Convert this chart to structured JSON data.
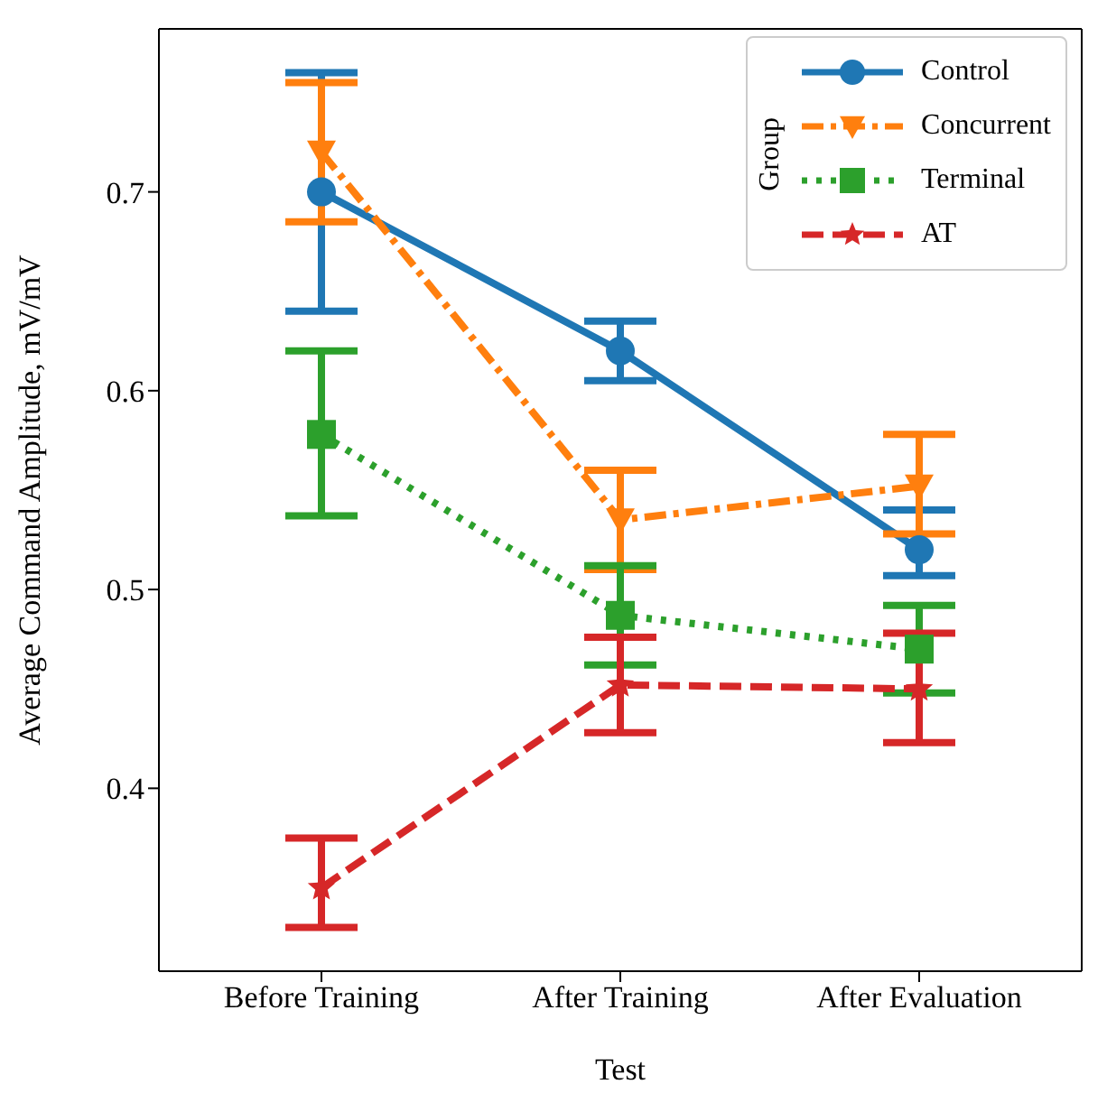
{
  "chart_data": {
    "type": "line",
    "xlabel": "Test",
    "ylabel": "Average Command Amplitude, mV/mV",
    "legend_title": "Group",
    "categories": [
      "Before Training",
      "After Training",
      "After Evaluation"
    ],
    "series": [
      {
        "name": "Control",
        "color": "#1f77b4",
        "marker": "circle",
        "line_style": "solid",
        "values": [
          0.7,
          0.62,
          0.52
        ],
        "errors": [
          [
            0.64,
            0.76
          ],
          [
            0.605,
            0.635
          ],
          [
            0.507,
            0.54
          ]
        ]
      },
      {
        "name": "Concurrent",
        "color": "#ff7f0e",
        "marker": "triangle",
        "line_style": "dashdot",
        "values": [
          0.72,
          0.535,
          0.552
        ],
        "errors": [
          [
            0.685,
            0.755
          ],
          [
            0.51,
            0.56
          ],
          [
            0.528,
            0.578
          ]
        ]
      },
      {
        "name": "Terminal",
        "color": "#2ca02c",
        "marker": "square",
        "line_style": "dotted",
        "values": [
          0.578,
          0.487,
          0.47
        ],
        "errors": [
          [
            0.537,
            0.62
          ],
          [
            0.462,
            0.512
          ],
          [
            0.448,
            0.492
          ]
        ]
      },
      {
        "name": "AT",
        "color": "#d62728",
        "marker": "star",
        "line_style": "dashed",
        "values": [
          0.35,
          0.452,
          0.45
        ],
        "errors": [
          [
            0.33,
            0.375
          ],
          [
            0.428,
            0.476
          ],
          [
            0.423,
            0.478
          ]
        ]
      }
    ],
    "ylim": [
      0.308,
      0.782
    ],
    "yticks": [
      0.4,
      0.5,
      0.6,
      0.7
    ],
    "grid": false,
    "legend": "top right"
  }
}
